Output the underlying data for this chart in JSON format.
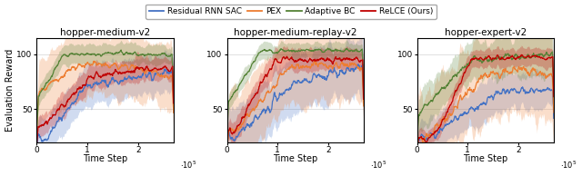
{
  "subplots": [
    {
      "title": "hopper-medium-v2",
      "ylim": [
        20,
        115
      ],
      "yticks": [
        50,
        100
      ]
    },
    {
      "title": "hopper-medium-replay-v2",
      "ylim": [
        20,
        115
      ],
      "yticks": [
        50,
        100
      ]
    },
    {
      "title": "hopper-expert-v2",
      "ylim": [
        20,
        115
      ],
      "yticks": [
        50,
        100
      ]
    }
  ],
  "xlabel": "Time Step",
  "ylabel": "Evaluation Reward",
  "xlim": [
    0,
    270000
  ],
  "xticks": [
    0,
    100000,
    200000
  ],
  "xticklabels": [
    "0",
    "1",
    "2"
  ],
  "colors": {
    "residual": "#4472c4",
    "pex": "#ed7d31",
    "adaptive": "#548235",
    "relce": "#c00000"
  },
  "alpha_fill": 0.25,
  "lw": 1.0
}
